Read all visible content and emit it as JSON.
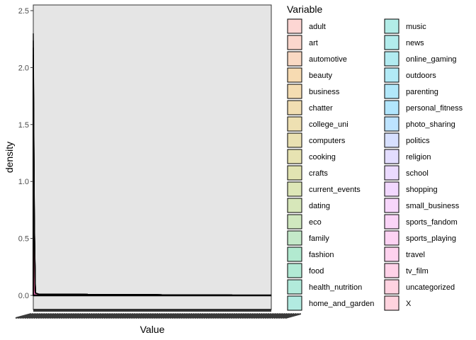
{
  "chart_data": {
    "type": "area",
    "title": "",
    "xlabel": "Value",
    "ylabel": "density",
    "ylim": [
      0,
      2.55
    ],
    "y_ticks": [
      0.0,
      0.5,
      1.0,
      1.5,
      2.0,
      2.5
    ],
    "y_tick_labels": [
      "0.0",
      "0.5",
      "1.0",
      "1.5",
      "2.0",
      "2.5"
    ],
    "grid": false,
    "panel_background": "#e5e5e5",
    "legend": {
      "title": "Variable",
      "position": "right",
      "columns": 2,
      "entries": [
        "adult",
        "art",
        "automotive",
        "beauty",
        "business",
        "chatter",
        "college_uni",
        "computers",
        "cooking",
        "crafts",
        "current_events",
        "dating",
        "eco",
        "family",
        "fashion",
        "food",
        "health_nutrition",
        "home_and_garden",
        "music",
        "news",
        "online_gaming",
        "outdoors",
        "parenting",
        "personal_fitness",
        "photo_sharing",
        "politics",
        "religion",
        "school",
        "shopping",
        "small_business",
        "sports_fandom",
        "sports_playing",
        "travel",
        "tv_film",
        "uncategorized",
        "X"
      ],
      "colors": [
        "#F8766D",
        "#F37B59",
        "#EC8239",
        "#E58700",
        "#DC8D00",
        "#D29300",
        "#C79800",
        "#BB9D00",
        "#AEA200",
        "#9FA600",
        "#8EAB12",
        "#7AAE1B",
        "#62B32C",
        "#3DB64D",
        "#00B962",
        "#00BB75",
        "#00BE88",
        "#00BE9C",
        "#00C0AF",
        "#00BFC1",
        "#00BCD1",
        "#00B8E2",
        "#00B2EF",
        "#00ABFA",
        "#23A3FF",
        "#7B99FF",
        "#A38FFF",
        "#BE85FF",
        "#D37DFE",
        "#E377F2",
        "#EF71E5",
        "#F86CD8",
        "#FD6AC6",
        "#FF69B2",
        "#FF6C9C",
        "#FF6C91"
      ]
    },
    "series_shape": {
      "description_values": {
        "peak_x": 0,
        "peak_density": 2.3,
        "tail_density": 0.0
      }
    }
  }
}
